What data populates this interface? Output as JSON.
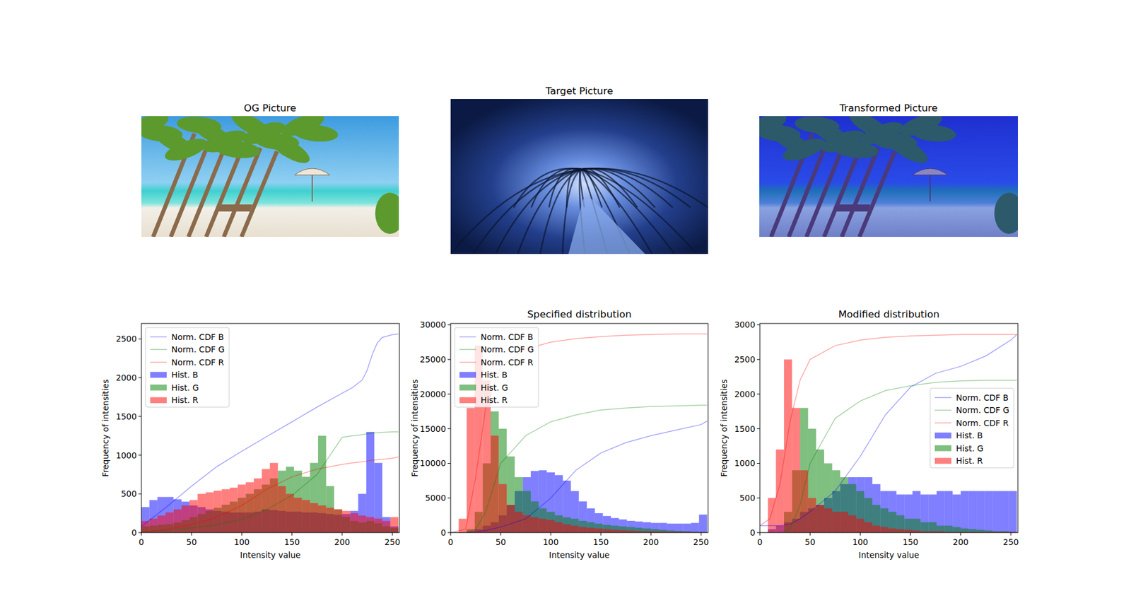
{
  "images": [
    {
      "title": "OG Picture"
    },
    {
      "title": "Target Picture"
    },
    {
      "title": "Transformed Picture"
    }
  ],
  "chart_data": [
    {
      "type": "histogram",
      "x_label": "Intensity value",
      "y_label": "Frequency of intensities",
      "bins": [
        0,
        8,
        16,
        24,
        32,
        40,
        48,
        56,
        64,
        72,
        80,
        88,
        96,
        104,
        112,
        120,
        128,
        136,
        144,
        152,
        160,
        168,
        176,
        184,
        192,
        200,
        208,
        216,
        224,
        232,
        240,
        248,
        256
      ],
      "xlim": [
        0,
        257
      ],
      "ylim": [
        0,
        2700
      ],
      "xticks": [
        0,
        50,
        100,
        150,
        200,
        250
      ],
      "yticks": [
        0,
        500,
        1000,
        1500,
        2000,
        2500
      ],
      "legend": "upper left",
      "series": [
        {
          "name": "Norm. CDF B",
          "type": "line",
          "color": "blue",
          "x": [
            0,
            25,
            50,
            75,
            100,
            125,
            150,
            175,
            200,
            210,
            220,
            225,
            230,
            235,
            240,
            250,
            256
          ],
          "values": [
            80,
            330,
            600,
            850,
            1050,
            1240,
            1430,
            1620,
            1800,
            1870,
            1970,
            2100,
            2300,
            2450,
            2520,
            2555,
            2565
          ]
        },
        {
          "name": "Norm. CDF G",
          "type": "line",
          "color": "green",
          "x": [
            0,
            25,
            50,
            75,
            100,
            125,
            150,
            175,
            200,
            210,
            220,
            225,
            230,
            235,
            240,
            250,
            256
          ],
          "values": [
            10,
            30,
            60,
            100,
            170,
            300,
            480,
            750,
            1230,
            1250,
            1265,
            1275,
            1285,
            1290,
            1295,
            1300,
            1300
          ]
        },
        {
          "name": "Norm. CDF R",
          "type": "line",
          "color": "red",
          "x": [
            0,
            25,
            50,
            75,
            100,
            125,
            150,
            175,
            200,
            210,
            220,
            225,
            230,
            235,
            240,
            250,
            256
          ],
          "values": [
            5,
            40,
            100,
            200,
            350,
            560,
            720,
            820,
            880,
            900,
            915,
            925,
            935,
            940,
            945,
            960,
            975
          ]
        },
        {
          "name": "Hist. B",
          "type": "bar",
          "color": "blue",
          "values": [
            330,
            420,
            460,
            460,
            430,
            400,
            350,
            330,
            300,
            280,
            270,
            260,
            260,
            260,
            270,
            300,
            290,
            280,
            270,
            270,
            260,
            260,
            250,
            240,
            230,
            240,
            280,
            500,
            1300,
            900,
            200,
            80
          ]
        },
        {
          "name": "Hist. G",
          "type": "bar",
          "color": "green",
          "values": [
            80,
            90,
            100,
            110,
            130,
            160,
            200,
            240,
            280,
            320,
            360,
            400,
            450,
            500,
            560,
            620,
            700,
            800,
            850,
            800,
            720,
            900,
            1250,
            600,
            300,
            200,
            150,
            130,
            150,
            120,
            80,
            60
          ]
        },
        {
          "name": "Hist. R",
          "type": "bar",
          "color": "red",
          "values": [
            150,
            180,
            220,
            260,
            300,
            350,
            420,
            500,
            520,
            540,
            560,
            580,
            620,
            650,
            700,
            820,
            900,
            600,
            500,
            450,
            420,
            380,
            350,
            320,
            300,
            280,
            250,
            220,
            200,
            180,
            150,
            200
          ]
        }
      ]
    },
    {
      "type": "histogram",
      "title": "Specified distribution",
      "x_label": "Intensity value",
      "y_label": "Frequency of intensities",
      "bins": [
        0,
        8,
        16,
        24,
        32,
        40,
        48,
        56,
        64,
        72,
        80,
        88,
        96,
        104,
        112,
        120,
        128,
        136,
        144,
        152,
        160,
        168,
        176,
        184,
        192,
        200,
        208,
        216,
        224,
        232,
        240,
        248,
        256
      ],
      "xlim": [
        0,
        257
      ],
      "ylim": [
        0,
        30200
      ],
      "xticks": [
        0,
        50,
        100,
        150,
        200,
        250
      ],
      "yticks": [
        0,
        5000,
        10000,
        15000,
        20000,
        25000,
        30000
      ],
      "legend": "upper left",
      "series": [
        {
          "name": "Norm. CDF B",
          "type": "line",
          "color": "blue",
          "x": [
            0,
            15,
            25,
            35,
            50,
            75,
            100,
            125,
            150,
            175,
            200,
            225,
            250,
            256
          ],
          "values": [
            0,
            0,
            100,
            300,
            800,
            2000,
            5000,
            9000,
            11500,
            13000,
            14000,
            14800,
            15600,
            16100
          ]
        },
        {
          "name": "Norm. CDF G",
          "type": "line",
          "color": "green",
          "x": [
            0,
            15,
            25,
            35,
            50,
            75,
            100,
            125,
            150,
            175,
            200,
            225,
            250,
            256
          ],
          "values": [
            0,
            0,
            500,
            3000,
            10000,
            14000,
            16000,
            17000,
            17700,
            18000,
            18200,
            18300,
            18400,
            18400
          ]
        },
        {
          "name": "Norm. CDF R",
          "type": "line",
          "color": "red",
          "x": [
            0,
            15,
            25,
            35,
            50,
            75,
            100,
            125,
            150,
            175,
            200,
            225,
            250,
            256
          ],
          "values": [
            0,
            500,
            8000,
            18000,
            24000,
            26500,
            27500,
            28000,
            28300,
            28500,
            28600,
            28700,
            28700,
            28700
          ]
        },
        {
          "name": "Hist. B",
          "type": "bar",
          "color": "blue",
          "values": [
            0,
            0,
            200,
            500,
            1000,
            1500,
            2500,
            4000,
            6000,
            8000,
            8900,
            9000,
            8700,
            8300,
            7500,
            6000,
            4500,
            3500,
            2800,
            2400,
            2100,
            1900,
            1700,
            1600,
            1500,
            1400,
            1400,
            1300,
            1300,
            1300,
            1400,
            2600
          ]
        },
        {
          "name": "Hist. G",
          "type": "bar",
          "color": "green",
          "values": [
            0,
            0,
            500,
            3000,
            10000,
            17500,
            15000,
            11000,
            8000,
            6000,
            4500,
            3500,
            3000,
            2500,
            2200,
            2000,
            1700,
            1500,
            1300,
            1100,
            1000,
            900,
            800,
            700,
            600,
            500,
            400,
            300,
            250,
            200,
            150,
            100
          ]
        },
        {
          "name": "Hist. R",
          "type": "bar",
          "color": "red",
          "values": [
            0,
            2000,
            18000,
            27000,
            22000,
            14000,
            7000,
            4000,
            3000,
            2500,
            2200,
            2000,
            1800,
            1500,
            1200,
            1000,
            800,
            700,
            600,
            500,
            400,
            350,
            300,
            250,
            200,
            180,
            160,
            140,
            120,
            100,
            80,
            60
          ]
        }
      ]
    },
    {
      "type": "histogram",
      "title": "Modified distribution",
      "x_label": "Intensity value",
      "y_label": "Frequency of intensities",
      "bins": [
        0,
        8,
        16,
        24,
        32,
        40,
        48,
        56,
        64,
        72,
        80,
        88,
        96,
        104,
        112,
        120,
        128,
        136,
        144,
        152,
        160,
        168,
        176,
        184,
        192,
        200,
        208,
        216,
        224,
        232,
        240,
        248,
        256
      ],
      "xlim": [
        0,
        257
      ],
      "ylim": [
        0,
        3020
      ],
      "xticks": [
        0,
        50,
        100,
        150,
        200,
        250
      ],
      "yticks": [
        0,
        500,
        1000,
        1500,
        2000,
        2500,
        3000
      ],
      "legend": "center right",
      "series": [
        {
          "name": "Norm. CDF B",
          "type": "line",
          "color": "blue",
          "x": [
            0,
            10,
            20,
            30,
            40,
            50,
            75,
            100,
            125,
            150,
            175,
            200,
            225,
            250,
            256
          ],
          "values": [
            100,
            100,
            100,
            120,
            200,
            300,
            600,
            1100,
            1700,
            2100,
            2300,
            2400,
            2550,
            2780,
            2860
          ]
        },
        {
          "name": "Norm. CDF G",
          "type": "line",
          "color": "green",
          "x": [
            0,
            10,
            20,
            30,
            40,
            50,
            75,
            100,
            125,
            150,
            175,
            200,
            225,
            250,
            256
          ],
          "values": [
            0,
            0,
            0,
            50,
            400,
            1000,
            1650,
            1900,
            2050,
            2120,
            2170,
            2190,
            2200,
            2200,
            2200
          ]
        },
        {
          "name": "Norm. CDF R",
          "type": "line",
          "color": "red",
          "x": [
            0,
            10,
            20,
            30,
            40,
            50,
            75,
            100,
            125,
            150,
            175,
            200,
            225,
            250,
            256
          ],
          "values": [
            100,
            200,
            700,
            1600,
            2200,
            2500,
            2700,
            2780,
            2820,
            2840,
            2850,
            2860,
            2860,
            2860,
            2860
          ]
        },
        {
          "name": "Hist. B",
          "type": "bar",
          "color": "blue",
          "values": [
            0,
            50,
            100,
            150,
            200,
            300,
            350,
            400,
            500,
            600,
            700,
            800,
            800,
            800,
            700,
            600,
            600,
            550,
            550,
            600,
            550,
            550,
            600,
            600,
            550,
            600,
            600,
            600,
            600,
            600,
            600,
            600
          ]
        },
        {
          "name": "Hist. G",
          "type": "bar",
          "color": "green",
          "values": [
            0,
            0,
            0,
            300,
            900,
            1800,
            1500,
            1200,
            1000,
            900,
            800,
            700,
            600,
            500,
            400,
            350,
            300,
            250,
            200,
            200,
            150,
            150,
            100,
            100,
            80,
            60,
            50,
            40,
            30,
            20,
            20,
            10
          ]
        },
        {
          "name": "Hist. R",
          "type": "bar",
          "color": "red",
          "values": [
            0,
            500,
            1200,
            2500,
            1800,
            900,
            500,
            400,
            350,
            300,
            300,
            250,
            200,
            150,
            100,
            80,
            60,
            50,
            40,
            30,
            20,
            20,
            20,
            10,
            10,
            10,
            10,
            10,
            10,
            10,
            10,
            10
          ]
        }
      ]
    }
  ]
}
